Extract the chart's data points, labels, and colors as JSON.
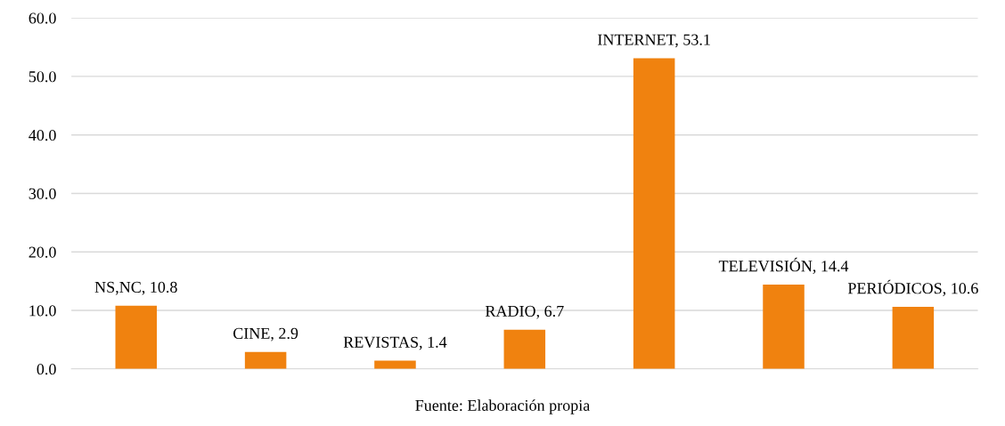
{
  "chart_data": {
    "type": "bar",
    "categories": [
      null,
      null,
      null,
      null,
      null,
      null,
      null
    ],
    "values": [
      10.8,
      2.9,
      1.4,
      6.7,
      53.1,
      14.4,
      10.6
    ],
    "value_labels": [
      "NS,NC, 10.8",
      "CINE, 2.9",
      "REVISTAS, 1.4",
      "RADIO, 6.7",
      "INTERNET, 53.1",
      "TELEVISIÓN, 14.4",
      "PERIÓDICOS, 10.6"
    ],
    "color": "#f0820f",
    "ylim": [
      0,
      60
    ],
    "yticks": [
      {
        "value": 0,
        "label": "0.0"
      },
      {
        "value": 10,
        "label": "10.0"
      },
      {
        "value": 20,
        "label": "20.0"
      },
      {
        "value": 30,
        "label": "30.0"
      },
      {
        "value": 40,
        "label": "40.0"
      },
      {
        "value": 50,
        "label": "50.0"
      },
      {
        "value": 60,
        "label": "60.0"
      }
    ],
    "grid": "y",
    "annotations": [
      "Fuente: Elaboración propia"
    ]
  }
}
